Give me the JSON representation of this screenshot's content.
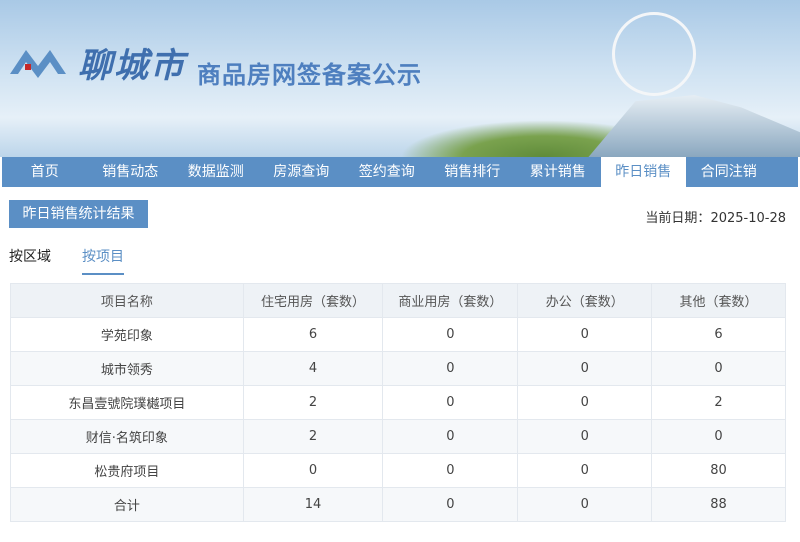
{
  "header": {
    "logo_text": "liaocheng",
    "city": "聊城市",
    "subtitle": "商品房网签备案公示"
  },
  "nav": [
    {
      "label": "首页"
    },
    {
      "label": "销售动态"
    },
    {
      "label": "数据监测"
    },
    {
      "label": "房源查询"
    },
    {
      "label": "签约查询"
    },
    {
      "label": "销售排行"
    },
    {
      "label": "累计销售"
    },
    {
      "label": "昨日销售",
      "active": true
    },
    {
      "label": "合同注销"
    }
  ],
  "toolbar": {
    "result_button": "昨日销售统计结果",
    "date_label": "当前日期：",
    "date": "2025-10-28"
  },
  "tabs": [
    {
      "label": "按区域"
    },
    {
      "label": "按项目",
      "active": true
    }
  ],
  "table": {
    "headers": [
      "项目名称",
      "住宅用房（套数）",
      "商业用房（套数）",
      "办公（套数）",
      "其他（套数）"
    ],
    "rows": [
      [
        "学苑印象",
        "6",
        "0",
        "0",
        "6"
      ],
      [
        "城市领秀",
        "4",
        "0",
        "0",
        "0"
      ],
      [
        "东昌壹號院璞樾项目",
        "2",
        "0",
        "0",
        "2"
      ],
      [
        "财信·名筑印象",
        "2",
        "0",
        "0",
        "0"
      ],
      [
        "松贵府项目",
        "0",
        "0",
        "0",
        "80"
      ],
      [
        "合计",
        "14",
        "0",
        "0",
        "88"
      ]
    ]
  },
  "colors": {
    "accent": "#5b8fc5"
  }
}
